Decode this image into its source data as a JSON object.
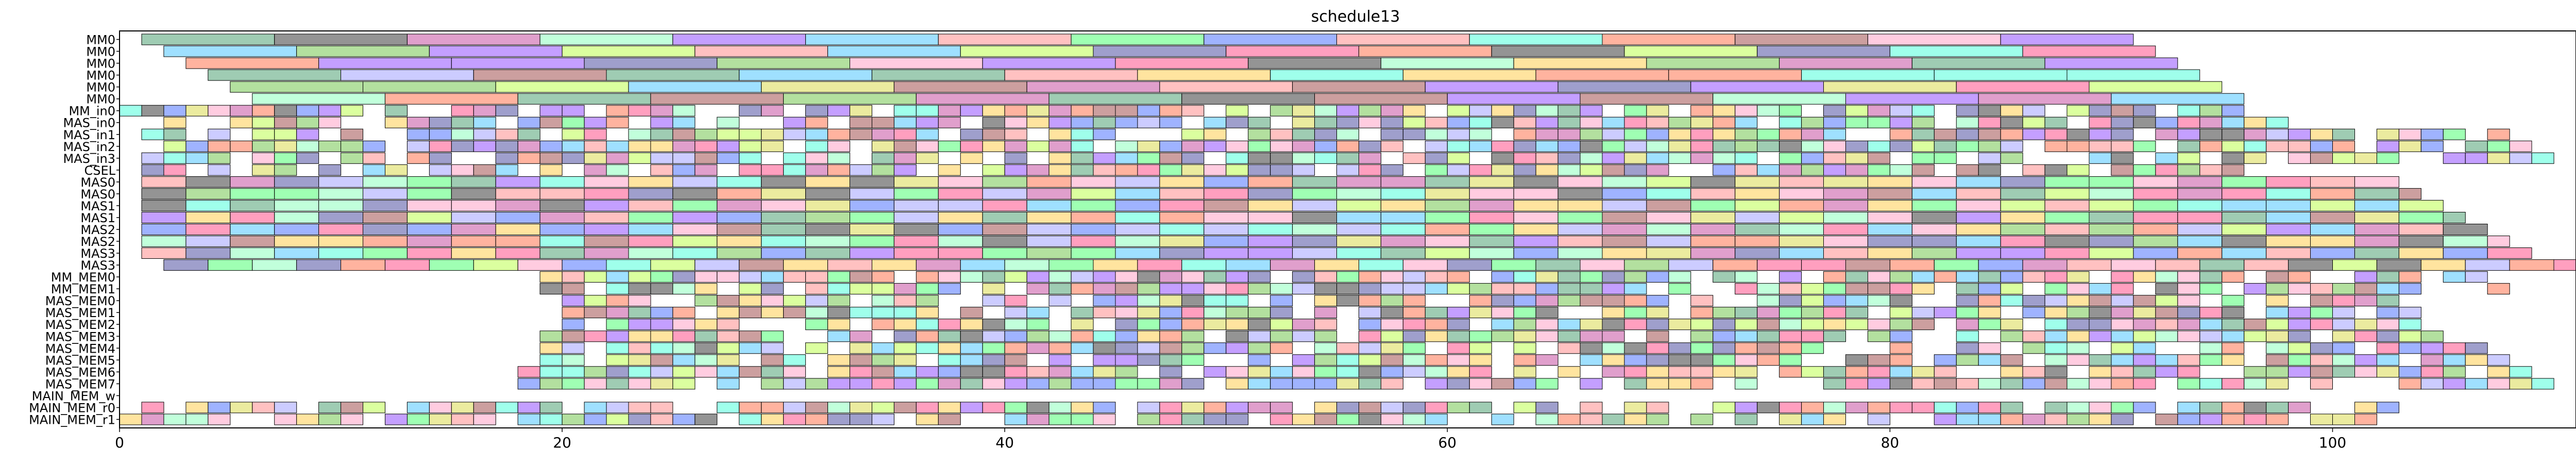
{
  "chart_data": {
    "type": "gantt",
    "title": "schedule13",
    "xlabel": "",
    "ylabel": "",
    "xlim": [
      0,
      111
    ],
    "x_ticks": [
      0,
      20,
      40,
      60,
      80,
      100
    ],
    "grid": false,
    "legend": "none",
    "rows": [
      "MM0",
      "MM0",
      "MM0",
      "MM0",
      "MM0",
      "MM0",
      "MM_in0",
      "MAS_in0",
      "MAS_in1",
      "MAS_in2",
      "MAS_in3",
      "CSEL",
      "MAS0",
      "MAS0",
      "MAS1",
      "MAS1",
      "MAS2",
      "MAS2",
      "MAS3",
      "MAS3",
      "MM_MEM0",
      "MM_MEM1",
      "MAS_MEM0",
      "MAS_MEM1",
      "MAS_MEM2",
      "MAS_MEM3",
      "MAS_MEM4",
      "MAS_MEM5",
      "MAS_MEM6",
      "MAS_MEM7",
      "MAIN_MEM_w",
      "MAIN_MEM_r0",
      "MAIN_MEM_r1"
    ],
    "task_segments": [
      {
        "row": 0,
        "start": 1,
        "end": 91,
        "duration": 6
      },
      {
        "row": 1,
        "start": 2,
        "end": 92,
        "duration": 6
      },
      {
        "row": 2,
        "start": 3,
        "end": 93,
        "duration": 6
      },
      {
        "row": 3,
        "start": 4,
        "end": 94,
        "duration": 6
      },
      {
        "row": 4,
        "start": 5,
        "end": 95,
        "duration": 6
      },
      {
        "row": 5,
        "start": 6,
        "end": 96,
        "duration": 6
      },
      {
        "row": 6,
        "start": 0,
        "end": 96,
        "duration": 1
      },
      {
        "row": 7,
        "start": 1,
        "end": 98,
        "duration": 1
      },
      {
        "row": 8,
        "start": 1,
        "end": 108,
        "duration": 1
      },
      {
        "row": 9,
        "start": 1,
        "end": 109,
        "duration": 1
      },
      {
        "row": 10,
        "start": 1,
        "end": 110,
        "duration": 1
      },
      {
        "row": 11,
        "start": 1,
        "end": 96,
        "duration": 1
      },
      {
        "row": 12,
        "start": 1,
        "end": 103,
        "duration": 2
      },
      {
        "row": 13,
        "start": 1,
        "end": 104,
        "duration": 2
      },
      {
        "row": 14,
        "start": 1,
        "end": 105,
        "duration": 2
      },
      {
        "row": 15,
        "start": 1,
        "end": 106,
        "duration": 2
      },
      {
        "row": 16,
        "start": 1,
        "end": 107,
        "duration": 2
      },
      {
        "row": 17,
        "start": 1,
        "end": 108,
        "duration": 2
      },
      {
        "row": 18,
        "start": 1,
        "end": 109,
        "duration": 2
      },
      {
        "row": 19,
        "start": 2,
        "end": 111,
        "duration": 2
      },
      {
        "row": 20,
        "start": 19,
        "end": 108,
        "duration": 1
      },
      {
        "row": 21,
        "start": 19,
        "end": 108,
        "duration": 1
      },
      {
        "row": 22,
        "start": 20,
        "end": 103,
        "duration": 1
      },
      {
        "row": 23,
        "start": 20,
        "end": 104,
        "duration": 1
      },
      {
        "row": 24,
        "start": 20,
        "end": 105,
        "duration": 1
      },
      {
        "row": 25,
        "start": 19,
        "end": 106,
        "duration": 1
      },
      {
        "row": 26,
        "start": 19,
        "end": 107,
        "duration": 1
      },
      {
        "row": 27,
        "start": 19,
        "end": 108,
        "duration": 1
      },
      {
        "row": 28,
        "start": 18,
        "end": 109,
        "duration": 1
      },
      {
        "row": 29,
        "start": 18,
        "end": 110,
        "duration": 1
      },
      {
        "row": 30,
        "start": 0,
        "end": 0,
        "duration": 1
      },
      {
        "row": 31,
        "start": 0,
        "end": 103,
        "duration": 1
      },
      {
        "row": 32,
        "start": 0,
        "end": 102,
        "duration": 1
      }
    ],
    "palette": [
      "#ff6b9d",
      "#6bff8a",
      "#6b8aff",
      "#ffd56b",
      "#a56bff",
      "#6bffe0",
      "#ff8a6b",
      "#8ad06b",
      "#5a5a5a",
      "#d06bb0",
      "#6bd0ff",
      "#c8ff6b",
      "#b06b6b",
      "#6bb08a",
      "#ffb0d0",
      "#b0b0ff",
      "#e0e06b",
      "#6b6bb0",
      "#ffa0a0",
      "#a0ffc8"
    ]
  }
}
